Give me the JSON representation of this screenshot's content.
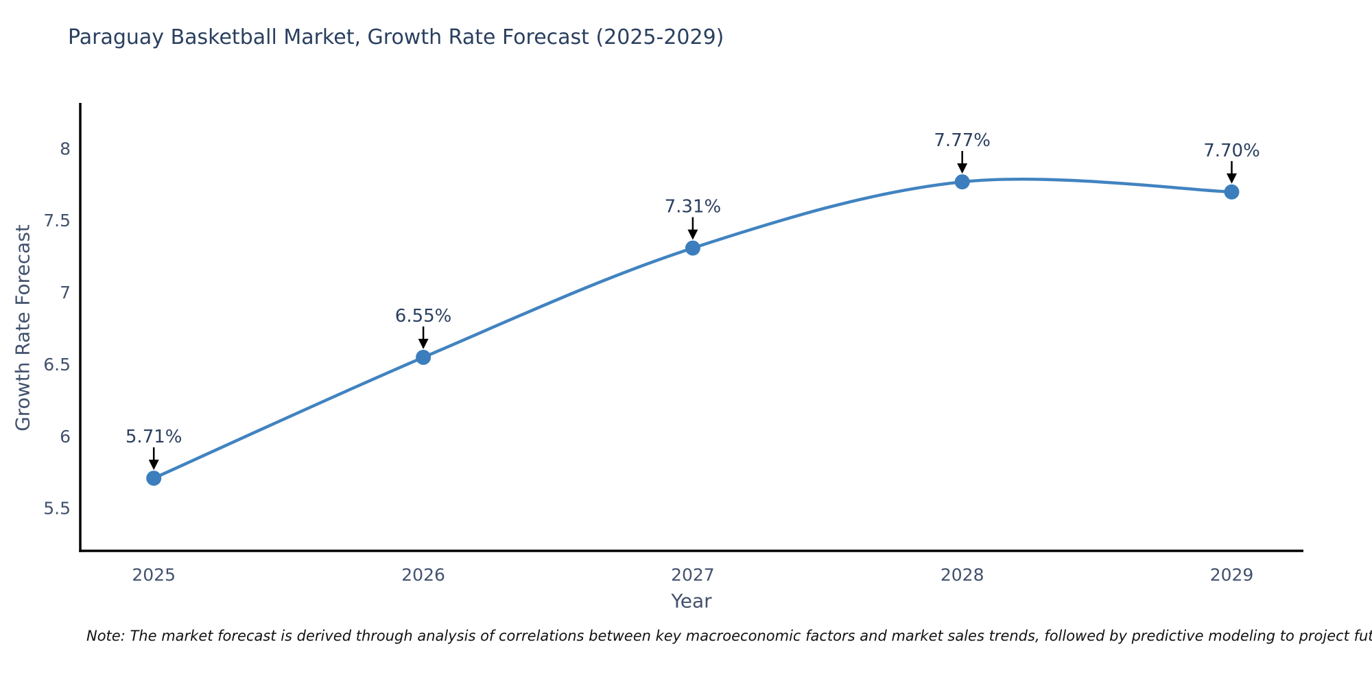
{
  "title": "Paraguay Basketball Market, Growth Rate Forecast (2025-2029)",
  "note": "Note: The market forecast is derived through analysis of correlations between key macroeconomic factors and market sales trends, followed by predictive modeling to project future sales",
  "chart_data": {
    "type": "line",
    "title": "Paraguay Basketball Market, Growth Rate Forecast (2025-2029)",
    "xlabel": "Year",
    "ylabel": "Growth Rate Forecast",
    "x": [
      2025,
      2026,
      2027,
      2028,
      2029
    ],
    "values": [
      5.71,
      6.55,
      7.31,
      7.77,
      7.7
    ],
    "point_labels": [
      "5.71%",
      "6.55%",
      "7.31%",
      "7.77%",
      "7.70%"
    ],
    "xtick_labels": [
      "2025",
      "2026",
      "2027",
      "2028",
      "2029"
    ],
    "yticks": [
      5.5,
      6,
      6.5,
      7,
      7.5,
      8
    ],
    "ytick_labels": [
      "5.5",
      "6",
      "6.5",
      "7",
      "7.5",
      "8"
    ],
    "xlim": [
      2024.727,
      2029.266
    ],
    "ylim": [
      5.205,
      8.295
    ],
    "grid": false,
    "legend": "none",
    "line_shape": "spline",
    "colors": {
      "line": "#4183c0",
      "marker": "#3b7dbd",
      "title_text": "#2a3f5f",
      "tick_text": "#42516d",
      "annotation_text": "#2a3f5f",
      "arrow": "#000000",
      "axis": "#000000",
      "note_text": "#111111"
    }
  }
}
